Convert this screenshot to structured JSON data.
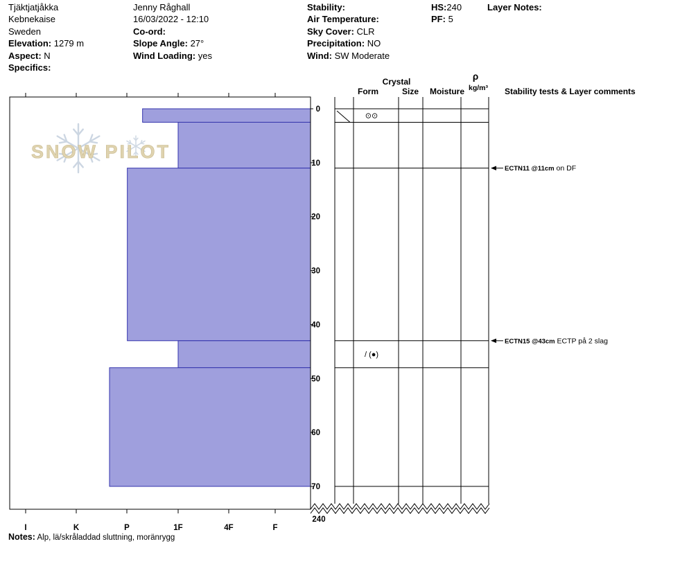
{
  "header": {
    "col1": {
      "lines": [
        {
          "label": "",
          "value": "Tjäktjatjåkka"
        },
        {
          "label": "",
          "value": "Kebnekaise"
        },
        {
          "label": "",
          "value": "Sweden"
        },
        {
          "label": "Elevation:",
          "value": " 1279 m"
        },
        {
          "label": "Aspect:",
          "value": " N"
        },
        {
          "label": "Specifics:",
          "value": ""
        }
      ]
    },
    "col2": {
      "lines": [
        {
          "label": "",
          "value": "Jenny Råghall"
        },
        {
          "label": "",
          "value": "16/03/2022 - 12:10"
        },
        {
          "label": "Co-ord:",
          "value": ""
        },
        {
          "label": "Slope Angle:",
          "value": " 27°"
        },
        {
          "label": "Wind Loading:",
          "value": " yes"
        }
      ]
    },
    "col3": {
      "lines": [
        {
          "label": "Stability:",
          "value": ""
        },
        {
          "label": "Air Temperature:",
          "value": ""
        },
        {
          "label": "Sky Cover:",
          "value": " CLR"
        },
        {
          "label": "Precipitation:",
          "value": " NO"
        },
        {
          "label": "Wind:",
          "value": " SW Moderate"
        }
      ]
    },
    "col4": {
      "lines": [
        {
          "label": "HS:",
          "value": "240"
        },
        {
          "label": "PF:",
          "value": " 5"
        }
      ]
    },
    "col5": {
      "lines": [
        {
          "label": "Layer Notes:",
          "value": ""
        }
      ]
    }
  },
  "watermark": {
    "text": "SNOW PILOT"
  },
  "chart_data": {
    "type": "bar",
    "title": "Snow pit hand-hardness profile by depth",
    "depth_axis": {
      "unit": "cm",
      "ticks": [
        0,
        10,
        20,
        30,
        40,
        50,
        60,
        70
      ],
      "range_shown_cm": [
        0,
        74
      ],
      "total_snow_height_cm": 240
    },
    "hardness_axis": {
      "ticks": [
        "I",
        "K",
        "P",
        "1F",
        "4F",
        "F"
      ],
      "note": "hardest at left"
    },
    "layers": [
      {
        "top_cm": 0,
        "bottom_cm": 2.5,
        "hand_hardness": "P-",
        "hardness_index": 2.3,
        "grain_form_symbol": "⊙⊙",
        "interface_diagonal": true
      },
      {
        "top_cm": 2.5,
        "bottom_cm": 11,
        "hand_hardness": "1F",
        "hardness_index": 3.0
      },
      {
        "top_cm": 11,
        "bottom_cm": 43,
        "hand_hardness": "P",
        "hardness_index": 2.0
      },
      {
        "top_cm": 43,
        "bottom_cm": 48,
        "hand_hardness": "1F",
        "hardness_index": 3.0,
        "grain_form_symbol": "/ (●)"
      },
      {
        "top_cm": 48,
        "bottom_cm": 70,
        "hand_hardness": "P+",
        "hardness_index": 1.65
      }
    ],
    "columns": {
      "crystal": "Crystal",
      "form": "Form",
      "size": "Size",
      "moisture": "Moisture",
      "density_rho": "ρ",
      "density_unit": "kg/m³",
      "comments": "Stability tests & Layer comments"
    },
    "tests": [
      {
        "depth_cm": 11,
        "name": "ECTN11 @11cm",
        "comment": " on DF"
      },
      {
        "depth_cm": 43,
        "name": "ECTN15 @43cm",
        "comment": " ECTP på 2 slag"
      }
    ],
    "bottom_depth_label": "240",
    "bar_fill": "#9f9fdd",
    "bar_stroke": "#3434ad"
  },
  "notes": {
    "label": "Notes:",
    "value": " Alp, lä/skråladdad sluttning, moränrygg"
  }
}
